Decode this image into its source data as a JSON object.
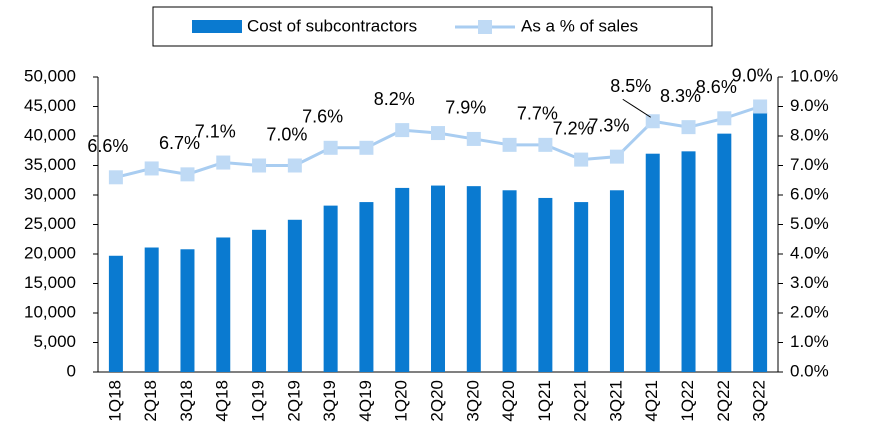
{
  "chart_data": {
    "type": "bar",
    "categories": [
      "1Q18",
      "2Q18",
      "3Q18",
      "4Q18",
      "1Q19",
      "2Q19",
      "3Q19",
      "4Q19",
      "1Q20",
      "2Q20",
      "3Q20",
      "4Q20",
      "1Q21",
      "2Q21",
      "3Q21",
      "4Q21",
      "1Q22",
      "2Q22",
      "3Q22"
    ],
    "series": [
      {
        "name": "Cost of subcontractors",
        "type": "bar",
        "color": "#0a7ad0",
        "values": [
          19700,
          21100,
          20800,
          22800,
          24100,
          25800,
          28200,
          28800,
          31200,
          31600,
          31500,
          30800,
          29500,
          28800,
          30800,
          37000,
          37400,
          40400,
          44000
        ]
      },
      {
        "name": "As a % of sales",
        "type": "line",
        "axis": "y2",
        "color": "#a9cdf1",
        "marker_color": "#bfdaf5",
        "values": [
          6.6,
          6.9,
          6.7,
          7.1,
          7.0,
          7.0,
          7.6,
          7.6,
          8.2,
          8.1,
          7.9,
          7.7,
          7.7,
          7.2,
          7.3,
          8.5,
          8.3,
          8.6,
          9.0
        ],
        "value_labels": [
          "6.6%",
          null,
          "6.7%",
          "7.1%",
          null,
          "7.0%",
          "7.6%",
          null,
          "8.2%",
          null,
          "7.9%",
          null,
          "7.7%",
          "7.2%",
          "7.3%",
          "8.5%",
          "8.3%",
          "8.6%",
          "9.0%"
        ]
      }
    ],
    "ylim": [
      0,
      50000
    ],
    "yticks": [
      0,
      {
        "value": 5000,
        "label": "5,000"
      },
      {
        "value": 10000,
        "label": "10,000"
      },
      {
        "value": 15000,
        "label": "15,000"
      },
      {
        "value": 20000,
        "label": "20,000"
      },
      {
        "value": 25000,
        "label": "25,000"
      },
      {
        "value": 30000,
        "label": "30,000"
      },
      {
        "value": 35000,
        "label": "35,000"
      },
      {
        "value": 40000,
        "label": "40,000"
      },
      {
        "value": 45000,
        "label": "45,000"
      },
      {
        "value": 50000,
        "label": "50,000"
      }
    ],
    "y2lim": [
      0,
      10
    ],
    "y2ticks": [
      {
        "value": 0,
        "label": "0.0%"
      },
      {
        "value": 1,
        "label": "1.0%"
      },
      {
        "value": 2,
        "label": "2.0%"
      },
      {
        "value": 3,
        "label": "3.0%"
      },
      {
        "value": 4,
        "label": "4.0%"
      },
      {
        "value": 5,
        "label": "5.0%"
      },
      {
        "value": 6,
        "label": "6.0%"
      },
      {
        "value": 7,
        "label": "7.0%"
      },
      {
        "value": 8,
        "label": "8.0%"
      },
      {
        "value": 9,
        "label": "9.0%"
      },
      {
        "value": 10,
        "label": "10.0%"
      }
    ],
    "legend": "top"
  }
}
